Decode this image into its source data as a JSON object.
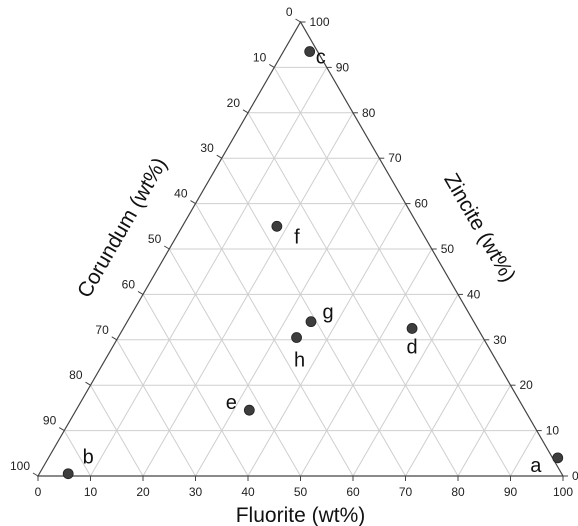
{
  "chart_data": {
    "type": "scatter",
    "subtype": "ternary",
    "axes": {
      "bottom": {
        "label": "Fluorite (wt%)",
        "min": 0,
        "max": 100,
        "step": 10
      },
      "left": {
        "label": "Corundum (wt%)",
        "min": 0,
        "max": 100,
        "step": 10
      },
      "right": {
        "label": "Zincite (wt%)",
        "min": 0,
        "max": 100,
        "step": 10
      }
    },
    "grid": true,
    "points": [
      {
        "label": "a",
        "fluorite": 97,
        "zincite": 4,
        "corundum": -1
      },
      {
        "label": "b",
        "fluorite": 5.5,
        "zincite": 0.5,
        "corundum": 94
      },
      {
        "label": "c",
        "fluorite": 5,
        "zincite": 93.5,
        "corundum": 1.5
      },
      {
        "label": "d",
        "fluorite": 55,
        "zincite": 32.5,
        "corundum": 12.5
      },
      {
        "label": "e",
        "fluorite": 33,
        "zincite": 14.5,
        "corundum": 52.5
      },
      {
        "label": "f",
        "fluorite": 18,
        "zincite": 55,
        "corundum": 27
      },
      {
        "label": "g",
        "fluorite": 35,
        "zincite": 34,
        "corundum": 31
      },
      {
        "label": "h",
        "fluorite": 34,
        "zincite": 30.5,
        "corundum": 35.5
      }
    ],
    "colors": {
      "point": "#3d3d3d",
      "grid": "#cfcfcf",
      "frame": "#444444"
    }
  }
}
